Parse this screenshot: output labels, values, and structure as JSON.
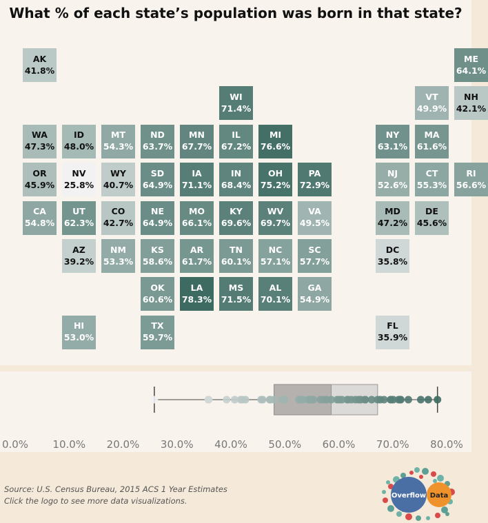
{
  "title": "What % of each state’s population was born in that state?",
  "chart_data": [
    {
      "type": "tile-map",
      "title": "What % of each state’s population was born in that state?",
      "color_scale": {
        "low": "#f2f2f2",
        "high": "#3d6b62",
        "min": 25.8,
        "max": 78.3
      },
      "states": [
        {
          "abbr": "AK",
          "value": 41.8,
          "row": 0,
          "col": 0
        },
        {
          "abbr": "ME",
          "value": 64.1,
          "row": 0,
          "col": 11
        },
        {
          "abbr": "WI",
          "value": 71.4,
          "row": 1,
          "col": 5
        },
        {
          "abbr": "VT",
          "value": 49.9,
          "row": 1,
          "col": 10
        },
        {
          "abbr": "NH",
          "value": 42.1,
          "row": 1,
          "col": 11
        },
        {
          "abbr": "WA",
          "value": 47.3,
          "row": 2,
          "col": 0
        },
        {
          "abbr": "ID",
          "value": 48.0,
          "row": 2,
          "col": 1
        },
        {
          "abbr": "MT",
          "value": 54.3,
          "row": 2,
          "col": 2
        },
        {
          "abbr": "ND",
          "value": 63.7,
          "row": 2,
          "col": 3
        },
        {
          "abbr": "MN",
          "value": 67.7,
          "row": 2,
          "col": 4
        },
        {
          "abbr": "IL",
          "value": 67.2,
          "row": 2,
          "col": 5
        },
        {
          "abbr": "MI",
          "value": 76.6,
          "row": 2,
          "col": 6
        },
        {
          "abbr": "NY",
          "value": 63.1,
          "row": 2,
          "col": 9
        },
        {
          "abbr": "MA",
          "value": 61.6,
          "row": 2,
          "col": 10
        },
        {
          "abbr": "OR",
          "value": 45.9,
          "row": 3,
          "col": 0
        },
        {
          "abbr": "NV",
          "value": 25.8,
          "row": 3,
          "col": 1
        },
        {
          "abbr": "WY",
          "value": 40.7,
          "row": 3,
          "col": 2
        },
        {
          "abbr": "SD",
          "value": 64.9,
          "row": 3,
          "col": 3
        },
        {
          "abbr": "IA",
          "value": 71.1,
          "row": 3,
          "col": 4
        },
        {
          "abbr": "IN",
          "value": 68.4,
          "row": 3,
          "col": 5
        },
        {
          "abbr": "OH",
          "value": 75.2,
          "row": 3,
          "col": 6
        },
        {
          "abbr": "PA",
          "value": 72.9,
          "row": 3,
          "col": 7
        },
        {
          "abbr": "NJ",
          "value": 52.6,
          "row": 3,
          "col": 9
        },
        {
          "abbr": "CT",
          "value": 55.3,
          "row": 3,
          "col": 10
        },
        {
          "abbr": "RI",
          "value": 56.6,
          "row": 3,
          "col": 11
        },
        {
          "abbr": "CA",
          "value": 54.8,
          "row": 4,
          "col": 0
        },
        {
          "abbr": "UT",
          "value": 62.3,
          "row": 4,
          "col": 1
        },
        {
          "abbr": "CO",
          "value": 42.7,
          "row": 4,
          "col": 2
        },
        {
          "abbr": "NE",
          "value": 64.9,
          "row": 4,
          "col": 3
        },
        {
          "abbr": "MO",
          "value": 66.1,
          "row": 4,
          "col": 4
        },
        {
          "abbr": "KY",
          "value": 69.6,
          "row": 4,
          "col": 5
        },
        {
          "abbr": "WV",
          "value": 69.7,
          "row": 4,
          "col": 6
        },
        {
          "abbr": "VA",
          "value": 49.5,
          "row": 4,
          "col": 7
        },
        {
          "abbr": "MD",
          "value": 47.2,
          "row": 4,
          "col": 9
        },
        {
          "abbr": "DE",
          "value": 45.6,
          "row": 4,
          "col": 10
        },
        {
          "abbr": "AZ",
          "value": 39.2,
          "row": 5,
          "col": 1
        },
        {
          "abbr": "NM",
          "value": 53.3,
          "row": 5,
          "col": 2
        },
        {
          "abbr": "KS",
          "value": 58.6,
          "row": 5,
          "col": 3
        },
        {
          "abbr": "AR",
          "value": 61.7,
          "row": 5,
          "col": 4
        },
        {
          "abbr": "TN",
          "value": 60.1,
          "row": 5,
          "col": 5
        },
        {
          "abbr": "NC",
          "value": 57.1,
          "row": 5,
          "col": 6
        },
        {
          "abbr": "SC",
          "value": 57.7,
          "row": 5,
          "col": 7
        },
        {
          "abbr": "DC",
          "value": 35.8,
          "row": 5,
          "col": 9
        },
        {
          "abbr": "OK",
          "value": 60.6,
          "row": 6,
          "col": 3
        },
        {
          "abbr": "LA",
          "value": 78.3,
          "row": 6,
          "col": 4
        },
        {
          "abbr": "MS",
          "value": 71.5,
          "row": 6,
          "col": 5
        },
        {
          "abbr": "AL",
          "value": 70.1,
          "row": 6,
          "col": 6
        },
        {
          "abbr": "GA",
          "value": 54.9,
          "row": 6,
          "col": 7
        },
        {
          "abbr": "HI",
          "value": 53.0,
          "row": 7,
          "col": 1
        },
        {
          "abbr": "TX",
          "value": 59.7,
          "row": 7,
          "col": 3
        },
        {
          "abbr": "FL",
          "value": 35.9,
          "row": 7,
          "col": 9
        }
      ]
    },
    {
      "type": "boxplot",
      "xlim": [
        0,
        80
      ],
      "x_ticks": [
        "0.0%",
        "10.0%",
        "20.0%",
        "30.0%",
        "40.0%",
        "50.0%",
        "60.0%",
        "70.0%",
        "80.0%"
      ],
      "x_tick_values": [
        0,
        10,
        20,
        30,
        40,
        50,
        60,
        70,
        80
      ],
      "whisker_low": 25.8,
      "q1": 48.0,
      "median": 58.6,
      "q3": 67.2,
      "whisker_high": 78.3,
      "points": [
        41.8,
        64.1,
        71.4,
        49.9,
        42.1,
        47.3,
        48.0,
        54.3,
        63.7,
        67.7,
        67.2,
        76.6,
        63.1,
        61.6,
        45.9,
        25.8,
        40.7,
        64.9,
        71.1,
        68.4,
        75.2,
        72.9,
        52.6,
        55.3,
        56.6,
        54.8,
        62.3,
        42.7,
        64.9,
        66.1,
        69.6,
        69.7,
        49.5,
        47.2,
        45.6,
        39.2,
        53.3,
        58.6,
        61.7,
        60.1,
        57.1,
        57.7,
        35.8,
        60.6,
        78.3,
        71.5,
        70.1,
        54.9,
        53.0,
        59.7,
        35.9
      ]
    }
  ],
  "footer": {
    "source_line": "Source: U.S. Census Bureau, 2015 ACS 1 Year Estimates",
    "hint_line": "Click the logo to see more data visualizations."
  },
  "logo": {
    "left_text": "Overflow",
    "right_text": "Data",
    "left_color": "#4a6fa5",
    "right_color": "#f0922b"
  }
}
